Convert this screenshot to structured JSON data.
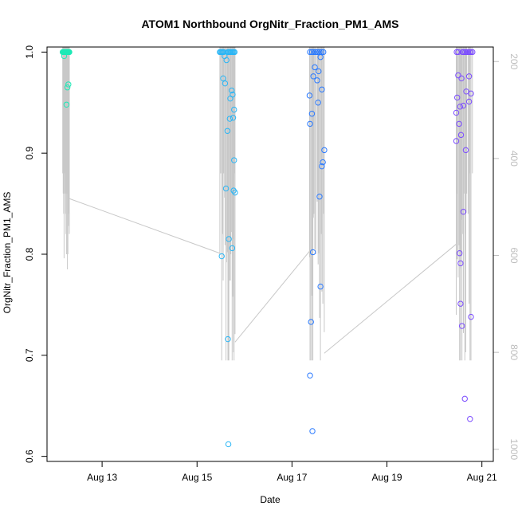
{
  "chart_data": {
    "type": "scatter",
    "title": "ATOM1 Northbound OrgNitr_Fraction_PM1_AMS",
    "xlabel": "Date",
    "ylabel": "OrgNitr_Fraction_PM1_AMS",
    "xlim": [
      11.84,
      21.24
    ],
    "ylim": [
      0.595,
      1.005
    ],
    "x_ticks": [
      {
        "value": 13,
        "label": "Aug 13"
      },
      {
        "value": 15,
        "label": "Aug 15"
      },
      {
        "value": 17,
        "label": "Aug 17"
      },
      {
        "value": 19,
        "label": "Aug 19"
      },
      {
        "value": 21,
        "label": "Aug 21"
      }
    ],
    "y_ticks": [
      {
        "value": 0.6,
        "label": "0.6"
      },
      {
        "value": 0.7,
        "label": "0.7"
      },
      {
        "value": 0.8,
        "label": "0.8"
      },
      {
        "value": 0.9,
        "label": "0.9"
      },
      {
        "value": 1.0,
        "label": "1.0"
      }
    ],
    "secondary_axis": {
      "side": "right",
      "color": "#bdbdbd",
      "lim": [
        170,
        1025
      ],
      "ticks": [
        {
          "value": 200,
          "label": "200"
        },
        {
          "value": 400,
          "label": "400"
        },
        {
          "value": 600,
          "label": "600"
        },
        {
          "value": 800,
          "label": "800"
        },
        {
          "value": 1000,
          "label": "1000"
        }
      ]
    },
    "series": [
      {
        "color": "#1de9b6",
        "points": [
          [
            12.17,
            1.0
          ],
          [
            12.18,
            1.0
          ],
          [
            12.19,
            1.0
          ],
          [
            12.2,
            1.0
          ],
          [
            12.21,
            1.0
          ],
          [
            12.22,
            1.0
          ],
          [
            12.23,
            1.0
          ],
          [
            12.24,
            1.0
          ],
          [
            12.25,
            1.0
          ],
          [
            12.26,
            1.0
          ],
          [
            12.27,
            1.0
          ],
          [
            12.28,
            1.0
          ],
          [
            12.29,
            1.0
          ],
          [
            12.3,
            1.0
          ],
          [
            12.31,
            1.0
          ],
          [
            12.2,
            0.996
          ],
          [
            12.25,
            0.948
          ],
          [
            12.27,
            0.965
          ],
          [
            12.29,
            0.968
          ]
        ]
      },
      {
        "color": "#29b6f6",
        "points": [
          [
            15.48,
            1.0
          ],
          [
            15.5,
            1.0
          ],
          [
            15.52,
            1.0
          ],
          [
            15.54,
            1.0
          ],
          [
            15.56,
            1.0
          ],
          [
            15.65,
            1.0
          ],
          [
            15.67,
            1.0
          ],
          [
            15.69,
            1.0
          ],
          [
            15.71,
            1.0
          ],
          [
            15.73,
            1.0
          ],
          [
            15.75,
            1.0
          ],
          [
            15.77,
            1.0
          ],
          [
            15.79,
            1.0
          ],
          [
            15.58,
            0.996
          ],
          [
            15.62,
            0.992
          ],
          [
            15.55,
            0.974
          ],
          [
            15.59,
            0.969
          ],
          [
            15.73,
            0.962
          ],
          [
            15.75,
            0.958
          ],
          [
            15.7,
            0.954
          ],
          [
            15.78,
            0.943
          ],
          [
            15.76,
            0.935
          ],
          [
            15.69,
            0.934
          ],
          [
            15.64,
            0.922
          ],
          [
            15.78,
            0.893
          ],
          [
            15.61,
            0.865
          ],
          [
            15.77,
            0.863
          ],
          [
            15.8,
            0.861
          ],
          [
            15.67,
            0.815
          ],
          [
            15.74,
            0.806
          ],
          [
            15.52,
            0.798
          ],
          [
            15.65,
            0.716
          ],
          [
            15.66,
            0.612
          ]
        ]
      },
      {
        "color": "#2979ff",
        "points": [
          [
            17.38,
            1.0
          ],
          [
            17.42,
            1.0
          ],
          [
            17.46,
            1.0
          ],
          [
            17.5,
            1.0
          ],
          [
            17.54,
            1.0
          ],
          [
            17.58,
            1.0
          ],
          [
            17.62,
            1.0
          ],
          [
            17.66,
            1.0
          ],
          [
            17.48,
            0.985
          ],
          [
            17.56,
            0.981
          ],
          [
            17.45,
            0.976
          ],
          [
            17.53,
            0.972
          ],
          [
            17.63,
            0.963
          ],
          [
            17.37,
            0.957
          ],
          [
            17.55,
            0.95
          ],
          [
            17.42,
            0.939
          ],
          [
            17.38,
            0.929
          ],
          [
            17.68,
            0.903
          ],
          [
            17.65,
            0.891
          ],
          [
            17.63,
            0.887
          ],
          [
            17.58,
            0.857
          ],
          [
            17.44,
            0.802
          ],
          [
            17.6,
            0.768
          ],
          [
            17.4,
            0.733
          ],
          [
            17.38,
            0.68
          ],
          [
            17.43,
            0.625
          ],
          [
            17.6,
            0.995
          ]
        ]
      },
      {
        "color": "#7c4dff",
        "points": [
          [
            20.47,
            1.0
          ],
          [
            20.5,
            1.0
          ],
          [
            20.59,
            1.0
          ],
          [
            20.62,
            1.0
          ],
          [
            20.65,
            1.0
          ],
          [
            20.68,
            1.0
          ],
          [
            20.71,
            1.0
          ],
          [
            20.74,
            1.0
          ],
          [
            20.77,
            1.0
          ],
          [
            20.8,
            1.0
          ],
          [
            20.5,
            0.977
          ],
          [
            20.57,
            0.974
          ],
          [
            20.73,
            0.976
          ],
          [
            20.67,
            0.961
          ],
          [
            20.77,
            0.959
          ],
          [
            20.48,
            0.955
          ],
          [
            20.73,
            0.951
          ],
          [
            20.61,
            0.947
          ],
          [
            20.54,
            0.946
          ],
          [
            20.46,
            0.94
          ],
          [
            20.52,
            0.929
          ],
          [
            20.56,
            0.918
          ],
          [
            20.46,
            0.912
          ],
          [
            20.66,
            0.903
          ],
          [
            20.61,
            0.842
          ],
          [
            20.53,
            0.801
          ],
          [
            20.55,
            0.791
          ],
          [
            20.55,
            0.751
          ],
          [
            20.77,
            0.738
          ],
          [
            20.58,
            0.729
          ],
          [
            20.64,
            0.657
          ],
          [
            20.75,
            0.637
          ]
        ]
      }
    ]
  }
}
